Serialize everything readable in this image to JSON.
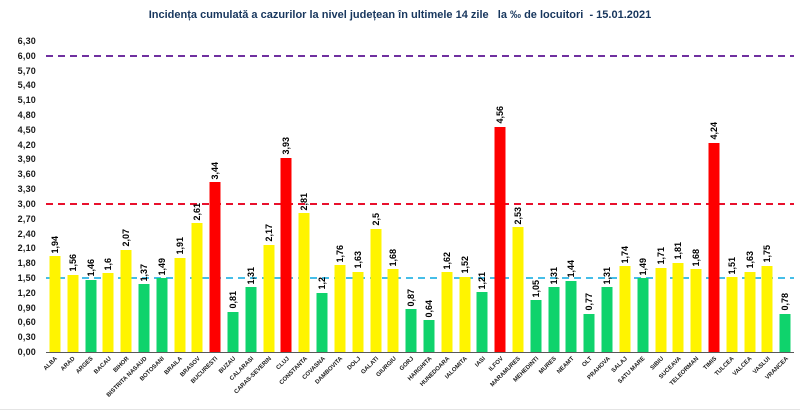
{
  "title": "Incidența cumulată a cazurilor la nivel județean în ultimele 14 zile   la ‰ de locuitori  - 15.01.2021",
  "chart_data": {
    "type": "bar",
    "title": "Incidența cumulată a cazurilor la nivel județean în ultimele 14 zile   la ‰ de locuitori  - 15.01.2021",
    "xlabel": "",
    "ylabel": "",
    "ylim": [
      0,
      6.3
    ],
    "ytick_step": 0.3,
    "grid": false,
    "legend": null,
    "yticks": [
      "6,30",
      "6,00",
      "5,70",
      "5,40",
      "5,10",
      "4,80",
      "4,50",
      "4,20",
      "3,90",
      "3,60",
      "3,30",
      "3,00",
      "2,70",
      "2,40",
      "2,10",
      "1,80",
      "1,50",
      "1,20",
      "0,90",
      "0,60",
      "0,30",
      "0,00"
    ],
    "categories": [
      "ALBA",
      "ARAD",
      "ARGES",
      "BACAU",
      "BIHOR",
      "BISTRITA NASAUD",
      "BOTOSANI",
      "BRAILA",
      "BRASOV",
      "BUCURESTI",
      "BUZAU",
      "CALARASI",
      "CARAS-SEVERIN",
      "CLUJ",
      "CONSTANTA",
      "COVASNA",
      "DAMBOVITA",
      "DOLJ",
      "GALATI",
      "GIURGIU",
      "GORJ",
      "HARGHITA",
      "HUNEDOARA",
      "IALOMITA",
      "IASI",
      "ILFOV",
      "MARAMURES",
      "MEHEDINTI",
      "MURES",
      "NEAMT",
      "OLT",
      "PRAHOVA",
      "SALAJ",
      "SATU MARE",
      "SIBIU",
      "SUCEAVA",
      "TELEORMAN",
      "TIMIS",
      "TULCEA",
      "VALCEA",
      "VASLUI",
      "VRANCEA"
    ],
    "values": [
      1.94,
      1.56,
      1.46,
      1.6,
      2.07,
      1.37,
      1.49,
      1.91,
      2.61,
      3.44,
      0.81,
      1.31,
      2.17,
      3.93,
      2.81,
      1.2,
      1.76,
      1.63,
      2.5,
      1.68,
      0.87,
      0.64,
      1.62,
      1.52,
      1.21,
      4.56,
      2.53,
      1.05,
      1.31,
      1.44,
      0.77,
      1.31,
      1.74,
      1.49,
      1.71,
      1.81,
      1.68,
      4.24,
      1.51,
      1.63,
      1.75,
      0.78
    ],
    "value_labels": [
      "1,94",
      "1,56",
      "1,46",
      "1,6",
      "2,07",
      "1,37",
      "1,49",
      "1,91",
      "2,61",
      "3,44",
      "0,81",
      "1,31",
      "2,17",
      "3,93",
      "2,81",
      "1,2",
      "1,76",
      "1,63",
      "2,5",
      "1,68",
      "0,87",
      "0,64",
      "1,62",
      "1,52",
      "1,21",
      "4,56",
      "2,53",
      "1,05",
      "1,31",
      "1,44",
      "0,77",
      "1,31",
      "1,74",
      "1,49",
      "1,71",
      "1,81",
      "1,68",
      "4,24",
      "1,51",
      "1,63",
      "1,75",
      "0,78"
    ],
    "bar_colors": [
      "yellow",
      "yellow",
      "green",
      "yellow",
      "yellow",
      "green",
      "green",
      "yellow",
      "yellow",
      "red",
      "green",
      "green",
      "yellow",
      "red",
      "yellow",
      "green",
      "yellow",
      "yellow",
      "yellow",
      "yellow",
      "green",
      "green",
      "yellow",
      "yellow",
      "green",
      "red",
      "yellow",
      "green",
      "green",
      "green",
      "green",
      "green",
      "yellow",
      "green",
      "yellow",
      "yellow",
      "yellow",
      "red",
      "yellow",
      "yellow",
      "yellow",
      "green"
    ],
    "palette": {
      "yellow": "#fff400",
      "green": "#0fd36c",
      "red": "#fe0000"
    },
    "thresholds": [
      {
        "value": 6.0,
        "color": "#7030a0"
      },
      {
        "value": 3.0,
        "color": "#e8112d"
      },
      {
        "value": 1.5,
        "color": "#45bee8"
      }
    ]
  }
}
